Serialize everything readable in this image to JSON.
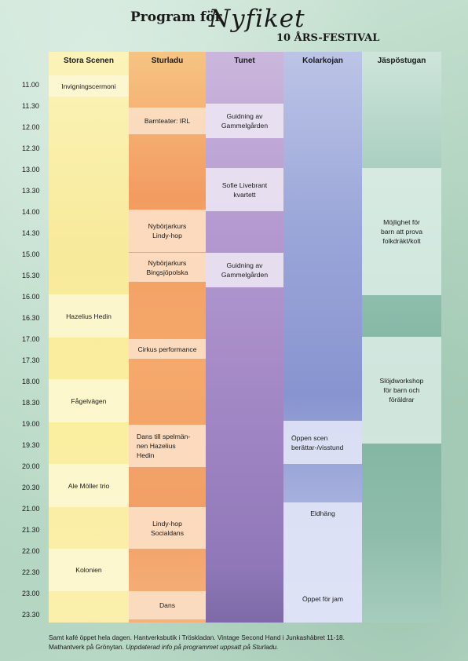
{
  "header": {
    "title": "Program för",
    "script_title": "Nyfiket",
    "subtitle": "10 ÅRS-FESTIVAL"
  },
  "columns": [
    "Stora Scenen",
    "Sturladu",
    "Tunet",
    "Kolarkojan",
    "Jäspöstugan"
  ],
  "times": [
    "11.00",
    "11.30",
    "12.00",
    "12.30",
    "13.00",
    "13.30",
    "14.00",
    "14.30",
    "15.00",
    "15.30",
    "16.00",
    "16.30",
    "17.00",
    "17.30",
    "18.00",
    "18.30",
    "19.00",
    "19.30",
    "20.00",
    "20.30",
    "21.00",
    "21.30",
    "22.00",
    "22.30",
    "23.00",
    "23.30"
  ],
  "events": {
    "stora": [
      "Invigningscermoni",
      "Hazelius Hedin",
      "Fågelvägen",
      "Ale Möller trio",
      "Kolonien"
    ],
    "sturladu": [
      "Barnteater: IRL",
      "Nybörjarkurs\nLindy-hop",
      "Nybörjarkurs\nBingsjöpolska",
      "Cirkus performance",
      "Dans till spelmän-\nnen Hazelius\nHedin",
      "Lindy-hop\nSocialdans",
      "Dans"
    ],
    "tunet": [
      "Guidning av\nGammelgården",
      "Sofie Livebrant\nkvartett",
      "Guidning av\nGammelgården"
    ],
    "kolarkojan": [
      "Öppen scen\nberättar-/visstund",
      "Eldhäng",
      "Öppet för jam"
    ],
    "jaspostugan": [
      "Möjlighet för\nbarn att prova\nfolkdräkt/kolt",
      "Slöjdworkshop\nför barn och\nföräldrar"
    ]
  },
  "footer": {
    "line1": "Samt kafé öppet hela dagen. Hantverksbutik i Tröskladan. Vintage Second Hand i Junkashäbret 11-18.",
    "line2_plain": "Mathantverk på Grönytan. ",
    "line2_italic": "Uppdaterad info på programmet uppsatt på Sturladu."
  }
}
